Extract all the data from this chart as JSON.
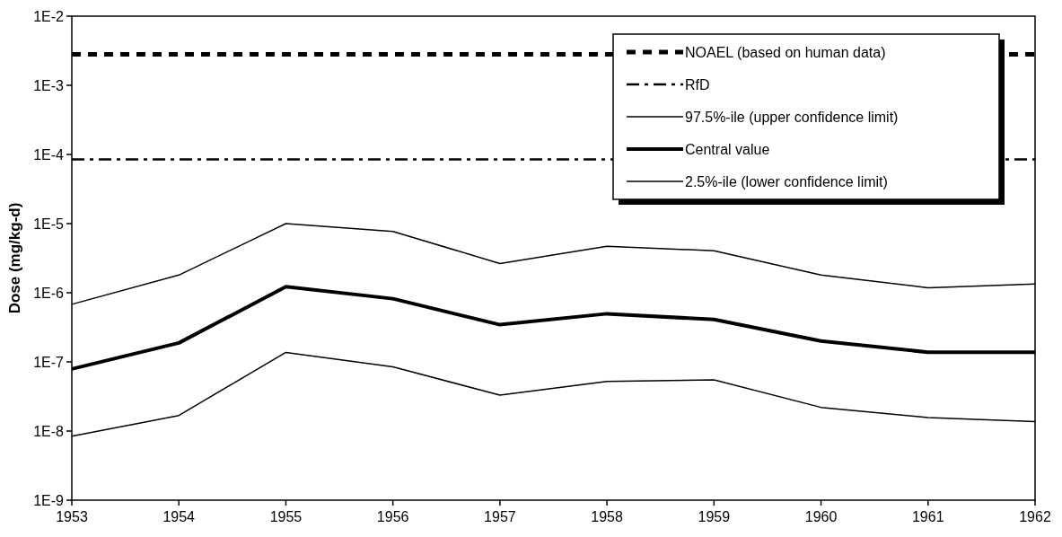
{
  "chart_data": {
    "type": "line",
    "ylabel": "Dose (mg/kg-d)",
    "x": [
      1953,
      1954,
      1955,
      1956,
      1957,
      1958,
      1959,
      1960,
      1961,
      1962
    ],
    "series": [
      {
        "name": "97.5%-ile (upper confidence limit)",
        "color": "#000000",
        "values": [
          6.8e-07,
          1.8e-06,
          1e-05,
          7.7e-06,
          2.65e-06,
          4.7e-06,
          4.05e-06,
          1.8e-06,
          1.18e-06,
          1.34e-06
        ]
      },
      {
        "name": "Central value",
        "color": "#000000",
        "values": [
          7.9e-08,
          1.88e-07,
          1.22e-06,
          8.2e-07,
          3.45e-07,
          4.97e-07,
          4.1e-07,
          2e-07,
          1.38e-07,
          1.38e-07
        ]
      },
      {
        "name": "2.5%-ile (lower confidence limit)",
        "color": "#000000",
        "values": [
          8.4e-09,
          1.68e-08,
          1.37e-07,
          8.5e-08,
          3.3e-08,
          5.2e-08,
          5.5e-08,
          2.2e-08,
          1.57e-08,
          1.37e-08
        ]
      }
    ],
    "ref_lines": [
      {
        "axis": "y",
        "value": 0.0028,
        "label": "NOAEL (based on human data)",
        "color": "#000000",
        "line_style": "dashed"
      },
      {
        "axis": "y",
        "value": 8.5e-05,
        "label": "RfD",
        "color": "#000000",
        "line_style": "dashdot"
      }
    ],
    "log": "y",
    "xlim": [
      1953,
      1962
    ],
    "xticks": [
      1953,
      1954,
      1955,
      1956,
      1957,
      1958,
      1959,
      1960,
      1961,
      1962
    ],
    "ylim": [
      1e-09,
      0.01
    ],
    "yticks": [
      {
        "value": 1e-09,
        "label": "1E-9"
      },
      {
        "value": 1e-08,
        "label": "1E-8"
      },
      {
        "value": 1e-07,
        "label": "1E-7"
      },
      {
        "value": 1e-06,
        "label": "1E-6"
      },
      {
        "value": 1e-05,
        "label": "1E-5"
      },
      {
        "value": 0.0001,
        "label": "1E-4"
      },
      {
        "value": 0.001,
        "label": "1E-3"
      },
      {
        "value": 0.01,
        "label": "1E-2"
      }
    ],
    "legend": "top right",
    "marker": "none",
    "line_style": "solid",
    "grid": false
  }
}
